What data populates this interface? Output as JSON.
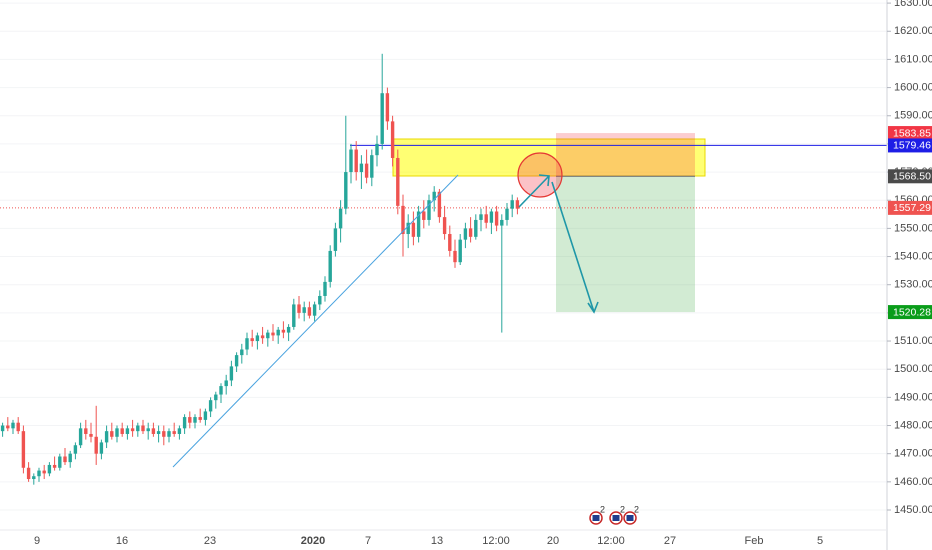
{
  "chart_data": {
    "type": "candlestick",
    "up_color": "#26a69a",
    "down_color": "#ef5350",
    "ohlc": [
      [
        1478,
        1481,
        1476,
        1480
      ],
      [
        1480,
        1483,
        1478,
        1479
      ],
      [
        1479,
        1482,
        1477,
        1481
      ],
      [
        1481,
        1483,
        1477,
        1478
      ],
      [
        1478,
        1480,
        1463,
        1465
      ],
      [
        1465,
        1467,
        1460,
        1461
      ],
      [
        1461,
        1463,
        1459,
        1462
      ],
      [
        1462,
        1465,
        1460,
        1464
      ],
      [
        1464,
        1466,
        1461,
        1463
      ],
      [
        1463,
        1467,
        1462,
        1466
      ],
      [
        1466,
        1469,
        1464,
        1465
      ],
      [
        1465,
        1470,
        1464,
        1469
      ],
      [
        1469,
        1472,
        1466,
        1467
      ],
      [
        1467,
        1471,
        1465,
        1470
      ],
      [
        1470,
        1474,
        1468,
        1473
      ],
      [
        1473,
        1481,
        1472,
        1479
      ],
      [
        1479,
        1482,
        1475,
        1477
      ],
      [
        1477,
        1481,
        1474,
        1476
      ],
      [
        1476,
        1487,
        1466,
        1470
      ],
      [
        1470,
        1475,
        1468,
        1474
      ],
      [
        1474,
        1480,
        1472,
        1478
      ],
      [
        1478,
        1481,
        1475,
        1476
      ],
      [
        1476,
        1480,
        1474,
        1479
      ],
      [
        1479,
        1481,
        1476,
        1477
      ],
      [
        1477,
        1480,
        1475,
        1479
      ],
      [
        1479,
        1482,
        1476,
        1478
      ],
      [
        1478,
        1481,
        1476,
        1480
      ],
      [
        1480,
        1482,
        1477,
        1478
      ],
      [
        1478,
        1481,
        1475,
        1479
      ],
      [
        1479,
        1481,
        1476,
        1477
      ],
      [
        1477,
        1480,
        1474,
        1478
      ],
      [
        1478,
        1480,
        1473,
        1476
      ],
      [
        1476,
        1479,
        1474,
        1478
      ],
      [
        1478,
        1481,
        1476,
        1477
      ],
      [
        1477,
        1480,
        1475,
        1479
      ],
      [
        1479,
        1484,
        1477,
        1483
      ],
      [
        1483,
        1485,
        1479,
        1481
      ],
      [
        1481,
        1484,
        1479,
        1483
      ],
      [
        1483,
        1486,
        1481,
        1482
      ],
      [
        1482,
        1486,
        1480,
        1485
      ],
      [
        1485,
        1490,
        1483,
        1489
      ],
      [
        1489,
        1492,
        1486,
        1491
      ],
      [
        1491,
        1495,
        1488,
        1494
      ],
      [
        1494,
        1498,
        1491,
        1496
      ],
      [
        1496,
        1503,
        1494,
        1501
      ],
      [
        1501,
        1506,
        1499,
        1505
      ],
      [
        1505,
        1509,
        1502,
        1507
      ],
      [
        1507,
        1513,
        1505,
        1511
      ],
      [
        1511,
        1514,
        1508,
        1510
      ],
      [
        1510,
        1513,
        1507,
        1512
      ],
      [
        1512,
        1515,
        1509,
        1511
      ],
      [
        1511,
        1514,
        1508,
        1513
      ],
      [
        1513,
        1516,
        1510,
        1512
      ],
      [
        1512,
        1515,
        1509,
        1514
      ],
      [
        1514,
        1517,
        1511,
        1513
      ],
      [
        1513,
        1516,
        1510,
        1515
      ],
      [
        1515,
        1525,
        1514,
        1523
      ],
      [
        1523,
        1526,
        1518,
        1520
      ],
      [
        1520,
        1524,
        1517,
        1522
      ],
      [
        1522,
        1524,
        1518,
        1519
      ],
      [
        1519,
        1524,
        1517,
        1523
      ],
      [
        1523,
        1528,
        1521,
        1526
      ],
      [
        1526,
        1533,
        1524,
        1531
      ],
      [
        1531,
        1544,
        1529,
        1542
      ],
      [
        1542,
        1552,
        1540,
        1550
      ],
      [
        1550,
        1560,
        1545,
        1557
      ],
      [
        1557,
        1590,
        1555,
        1570
      ],
      [
        1570,
        1580,
        1566,
        1578
      ],
      [
        1578,
        1581,
        1567,
        1570
      ],
      [
        1570,
        1576,
        1564,
        1573
      ],
      [
        1573,
        1578,
        1566,
        1568
      ],
      [
        1568,
        1578,
        1565,
        1576
      ],
      [
        1576,
        1583,
        1572,
        1580
      ],
      [
        1580,
        1612,
        1578,
        1598
      ],
      [
        1598,
        1600,
        1585,
        1588
      ],
      [
        1588,
        1590,
        1572,
        1575
      ],
      [
        1575,
        1578,
        1555,
        1558
      ],
      [
        1558,
        1562,
        1540,
        1548
      ],
      [
        1548,
        1555,
        1543,
        1552
      ],
      [
        1552,
        1556,
        1544,
        1547
      ],
      [
        1547,
        1558,
        1545,
        1556
      ],
      [
        1556,
        1560,
        1550,
        1553
      ],
      [
        1553,
        1562,
        1551,
        1560
      ],
      [
        1560,
        1565,
        1556,
        1563
      ],
      [
        1563,
        1564,
        1552,
        1554
      ],
      [
        1554,
        1558,
        1546,
        1548
      ],
      [
        1548,
        1551,
        1540,
        1542
      ],
      [
        1542,
        1546,
        1536,
        1538
      ],
      [
        1538,
        1548,
        1537,
        1546
      ],
      [
        1546,
        1552,
        1543,
        1550
      ],
      [
        1550,
        1554,
        1545,
        1547
      ],
      [
        1547,
        1555,
        1546,
        1553
      ],
      [
        1553,
        1557,
        1549,
        1555
      ],
      [
        1555,
        1558,
        1550,
        1552
      ],
      [
        1552,
        1557,
        1548,
        1556
      ],
      [
        1556,
        1558,
        1549,
        1551
      ],
      [
        1551,
        1555,
        1513,
        1553
      ],
      [
        1553,
        1559,
        1551,
        1557
      ],
      [
        1557,
        1562,
        1554,
        1560
      ],
      [
        1560,
        1561,
        1555,
        1557
      ]
    ],
    "ylim": [
      1442.9,
      1631.1
    ],
    "yticks": [
      {
        "value": 1450,
        "label": "1450.00"
      },
      {
        "value": 1460,
        "label": "1460.00"
      },
      {
        "value": 1470,
        "label": "1470.00"
      },
      {
        "value": 1480,
        "label": "1480.00"
      },
      {
        "value": 1490,
        "label": "1490.00"
      },
      {
        "value": 1500,
        "label": "1500.00"
      },
      {
        "value": 1510,
        "label": "1510.00"
      },
      {
        "value": 1520,
        "label": "1520.00"
      },
      {
        "value": 1530,
        "label": "1530.00"
      },
      {
        "value": 1540,
        "label": "1540.00"
      },
      {
        "value": 1550,
        "label": "1550.00"
      },
      {
        "value": 1560,
        "label": "1560.00"
      },
      {
        "value": 1570,
        "label": "1570.00"
      },
      {
        "value": 1580,
        "label": "1580.00"
      },
      {
        "value": 1590,
        "label": "1590.00"
      },
      {
        "value": 1600,
        "label": "1600.00"
      },
      {
        "value": 1610,
        "label": "1610.00"
      },
      {
        "value": 1620,
        "label": "1620.00"
      },
      {
        "value": 1630,
        "label": "1630.00"
      }
    ],
    "x_labels": [
      "9",
      "16",
      "23",
      "2020",
      "7",
      "13",
      "12:00",
      "20",
      "12:00",
      "27",
      "Feb",
      "5"
    ],
    "levels": [
      {
        "value": 1583.85,
        "label": "1583.85",
        "color": "#f23645"
      },
      {
        "value": 1579.46,
        "label": "1579.46",
        "color": "#1e1ee6"
      },
      {
        "value": 1568.5,
        "label": "1568.50",
        "color": "#4a4a4a"
      },
      {
        "value": 1557.29,
        "label": "1557.29",
        "color": "#ef5350"
      },
      {
        "value": 1520.28,
        "label": "1520.28",
        "color": "#0a9d1a"
      }
    ],
    "event_badges": [
      "2",
      "2",
      "2"
    ]
  }
}
